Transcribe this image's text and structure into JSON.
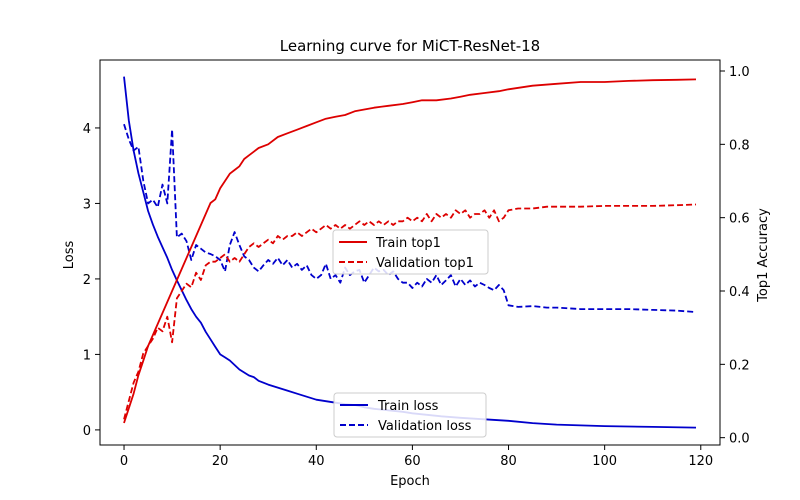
{
  "chart_data": {
    "type": "line",
    "title": "Learning curve for MiCT-ResNet-18",
    "xlabel": "Epoch",
    "ylabel_left": "Loss",
    "ylabel_right": "Top1 Accuracy",
    "xlim": [
      -5,
      124
    ],
    "ylim_left": [
      -0.2,
      4.9
    ],
    "ylim_right": [
      -0.02,
      1.03
    ],
    "x_ticks": [
      "0",
      "20",
      "40",
      "60",
      "80",
      "100",
      "120"
    ],
    "y_left_ticks": [
      "0",
      "1",
      "2",
      "3",
      "4"
    ],
    "y_right_ticks": [
      "0.0",
      "0.2",
      "0.4",
      "0.6",
      "0.8",
      "1.0"
    ],
    "grid": false,
    "legends": [
      {
        "placement": "center-right",
        "entries": [
          "Train top1",
          "Validation top1"
        ]
      },
      {
        "placement": "bottom-center",
        "entries": [
          "Train loss",
          "Validation loss"
        ]
      }
    ],
    "series": [
      {
        "name": "Train loss",
        "axis": "left",
        "color": "#0000cc",
        "style": "solid",
        "points": [
          [
            0,
            4.68
          ],
          [
            1,
            4.1
          ],
          [
            2,
            3.7
          ],
          [
            3,
            3.4
          ],
          [
            4,
            3.15
          ],
          [
            5,
            2.9
          ],
          [
            6,
            2.72
          ],
          [
            7,
            2.56
          ],
          [
            8,
            2.42
          ],
          [
            9,
            2.28
          ],
          [
            10,
            2.12
          ],
          [
            11,
            1.98
          ],
          [
            12,
            1.85
          ],
          [
            13,
            1.72
          ],
          [
            14,
            1.6
          ],
          [
            15,
            1.5
          ],
          [
            16,
            1.42
          ],
          [
            17,
            1.3
          ],
          [
            18,
            1.2
          ],
          [
            19,
            1.1
          ],
          [
            20,
            1.0
          ],
          [
            21,
            0.96
          ],
          [
            22,
            0.92
          ],
          [
            23,
            0.86
          ],
          [
            24,
            0.8
          ],
          [
            25,
            0.76
          ],
          [
            26,
            0.72
          ],
          [
            27,
            0.7
          ],
          [
            28,
            0.65
          ],
          [
            30,
            0.6
          ],
          [
            32,
            0.56
          ],
          [
            34,
            0.52
          ],
          [
            36,
            0.48
          ],
          [
            38,
            0.44
          ],
          [
            40,
            0.4
          ],
          [
            42,
            0.38
          ],
          [
            44,
            0.36
          ],
          [
            46,
            0.34
          ],
          [
            48,
            0.33
          ],
          [
            50,
            0.3
          ],
          [
            52,
            0.28
          ],
          [
            55,
            0.26
          ],
          [
            58,
            0.24
          ],
          [
            60,
            0.22
          ],
          [
            63,
            0.2
          ],
          [
            66,
            0.18
          ],
          [
            70,
            0.16
          ],
          [
            75,
            0.14
          ],
          [
            80,
            0.12
          ],
          [
            85,
            0.09
          ],
          [
            90,
            0.07
          ],
          [
            100,
            0.05
          ],
          [
            110,
            0.04
          ],
          [
            119,
            0.03
          ]
        ]
      },
      {
        "name": "Validation loss",
        "axis": "left",
        "color": "#0000cc",
        "style": "dashed",
        "points": [
          [
            0,
            4.05
          ],
          [
            1,
            3.85
          ],
          [
            2,
            3.7
          ],
          [
            3,
            3.75
          ],
          [
            4,
            3.3
          ],
          [
            5,
            3.0
          ],
          [
            6,
            3.05
          ],
          [
            7,
            2.95
          ],
          [
            8,
            3.25
          ],
          [
            9,
            3.0
          ],
          [
            10,
            3.98
          ],
          [
            11,
            2.55
          ],
          [
            12,
            2.6
          ],
          [
            13,
            2.5
          ],
          [
            14,
            2.25
          ],
          [
            15,
            2.45
          ],
          [
            16,
            2.4
          ],
          [
            17,
            2.35
          ],
          [
            18,
            2.33
          ],
          [
            19,
            2.3
          ],
          [
            20,
            2.25
          ],
          [
            21,
            2.1
          ],
          [
            22,
            2.45
          ],
          [
            23,
            2.62
          ],
          [
            24,
            2.45
          ],
          [
            25,
            2.3
          ],
          [
            26,
            2.25
          ],
          [
            27,
            2.15
          ],
          [
            28,
            2.1
          ],
          [
            29,
            2.18
          ],
          [
            30,
            2.25
          ],
          [
            31,
            2.2
          ],
          [
            32,
            2.28
          ],
          [
            33,
            2.18
          ],
          [
            34,
            2.25
          ],
          [
            35,
            2.15
          ],
          [
            36,
            2.2
          ],
          [
            37,
            2.12
          ],
          [
            38,
            2.18
          ],
          [
            39,
            2.05
          ],
          [
            40,
            2.0
          ],
          [
            41,
            2.05
          ],
          [
            42,
            2.2
          ],
          [
            43,
            2.0
          ],
          [
            44,
            2.05
          ],
          [
            45,
            1.95
          ],
          [
            46,
            2.15
          ],
          [
            47,
            2.05
          ],
          [
            48,
            2.1
          ],
          [
            49,
            2.12
          ],
          [
            50,
            1.95
          ],
          [
            51,
            2.05
          ],
          [
            52,
            2.15
          ],
          [
            53,
            2.1
          ],
          [
            54,
            2.12
          ],
          [
            55,
            2.05
          ],
          [
            56,
            2.1
          ],
          [
            57,
            2.0
          ],
          [
            58,
            1.95
          ],
          [
            59,
            1.95
          ],
          [
            60,
            1.88
          ],
          [
            61,
            1.95
          ],
          [
            62,
            1.9
          ],
          [
            63,
            2.0
          ],
          [
            64,
            1.95
          ],
          [
            65,
            2.05
          ],
          [
            66,
            1.92
          ],
          [
            67,
            1.98
          ],
          [
            68,
            2.05
          ],
          [
            69,
            1.9
          ],
          [
            70,
            2.0
          ],
          [
            71,
            1.92
          ],
          [
            72,
            1.98
          ],
          [
            73,
            1.9
          ],
          [
            74,
            1.95
          ],
          [
            75,
            1.92
          ],
          [
            76,
            1.88
          ],
          [
            77,
            1.85
          ],
          [
            78,
            1.92
          ],
          [
            79,
            1.85
          ],
          [
            80,
            1.65
          ],
          [
            82,
            1.63
          ],
          [
            85,
            1.64
          ],
          [
            88,
            1.62
          ],
          [
            90,
            1.62
          ],
          [
            95,
            1.6
          ],
          [
            100,
            1.6
          ],
          [
            105,
            1.6
          ],
          [
            110,
            1.59
          ],
          [
            115,
            1.58
          ],
          [
            119,
            1.56
          ]
        ]
      },
      {
        "name": "Train top1",
        "axis": "right",
        "color": "#dd0000",
        "style": "solid",
        "points": [
          [
            0,
            0.04
          ],
          [
            1,
            0.08
          ],
          [
            2,
            0.12
          ],
          [
            3,
            0.17
          ],
          [
            4,
            0.21
          ],
          [
            5,
            0.25
          ],
          [
            6,
            0.28
          ],
          [
            7,
            0.31
          ],
          [
            8,
            0.34
          ],
          [
            9,
            0.37
          ],
          [
            10,
            0.4
          ],
          [
            11,
            0.43
          ],
          [
            12,
            0.46
          ],
          [
            13,
            0.49
          ],
          [
            14,
            0.52
          ],
          [
            15,
            0.55
          ],
          [
            16,
            0.58
          ],
          [
            17,
            0.61
          ],
          [
            18,
            0.64
          ],
          [
            19,
            0.65
          ],
          [
            20,
            0.68
          ],
          [
            21,
            0.7
          ],
          [
            22,
            0.72
          ],
          [
            23,
            0.73
          ],
          [
            24,
            0.74
          ],
          [
            25,
            0.76
          ],
          [
            26,
            0.77
          ],
          [
            27,
            0.78
          ],
          [
            28,
            0.79
          ],
          [
            30,
            0.8
          ],
          [
            32,
            0.82
          ],
          [
            34,
            0.83
          ],
          [
            36,
            0.84
          ],
          [
            38,
            0.85
          ],
          [
            40,
            0.86
          ],
          [
            42,
            0.87
          ],
          [
            44,
            0.875
          ],
          [
            46,
            0.88
          ],
          [
            48,
            0.89
          ],
          [
            50,
            0.895
          ],
          [
            52,
            0.9
          ],
          [
            55,
            0.905
          ],
          [
            58,
            0.91
          ],
          [
            60,
            0.915
          ],
          [
            62,
            0.92
          ],
          [
            65,
            0.92
          ],
          [
            68,
            0.925
          ],
          [
            70,
            0.93
          ],
          [
            72,
            0.935
          ],
          [
            75,
            0.94
          ],
          [
            78,
            0.945
          ],
          [
            80,
            0.95
          ],
          [
            85,
            0.96
          ],
          [
            90,
            0.965
          ],
          [
            95,
            0.97
          ],
          [
            100,
            0.97
          ],
          [
            105,
            0.973
          ],
          [
            110,
            0.975
          ],
          [
            115,
            0.976
          ],
          [
            119,
            0.977
          ]
        ]
      },
      {
        "name": "Validation top1",
        "axis": "right",
        "color": "#dd0000",
        "style": "dashed",
        "points": [
          [
            0,
            0.05
          ],
          [
            1,
            0.1
          ],
          [
            2,
            0.15
          ],
          [
            3,
            0.18
          ],
          [
            4,
            0.23
          ],
          [
            5,
            0.25
          ],
          [
            6,
            0.27
          ],
          [
            7,
            0.3
          ],
          [
            8,
            0.29
          ],
          [
            9,
            0.33
          ],
          [
            10,
            0.26
          ],
          [
            11,
            0.38
          ],
          [
            12,
            0.4
          ],
          [
            13,
            0.42
          ],
          [
            14,
            0.41
          ],
          [
            15,
            0.45
          ],
          [
            16,
            0.43
          ],
          [
            17,
            0.47
          ],
          [
            18,
            0.48
          ],
          [
            19,
            0.48
          ],
          [
            20,
            0.49
          ],
          [
            21,
            0.5
          ],
          [
            22,
            0.48
          ],
          [
            23,
            0.49
          ],
          [
            24,
            0.48
          ],
          [
            25,
            0.5
          ],
          [
            26,
            0.52
          ],
          [
            27,
            0.53
          ],
          [
            28,
            0.52
          ],
          [
            29,
            0.53
          ],
          [
            30,
            0.54
          ],
          [
            31,
            0.53
          ],
          [
            32,
            0.55
          ],
          [
            33,
            0.54
          ],
          [
            34,
            0.55
          ],
          [
            35,
            0.55
          ],
          [
            36,
            0.56
          ],
          [
            37,
            0.55
          ],
          [
            38,
            0.56
          ],
          [
            39,
            0.57
          ],
          [
            40,
            0.56
          ],
          [
            41,
            0.57
          ],
          [
            42,
            0.58
          ],
          [
            43,
            0.57
          ],
          [
            44,
            0.58
          ],
          [
            45,
            0.57
          ],
          [
            46,
            0.58
          ],
          [
            47,
            0.57
          ],
          [
            48,
            0.58
          ],
          [
            49,
            0.59
          ],
          [
            50,
            0.58
          ],
          [
            51,
            0.59
          ],
          [
            52,
            0.58
          ],
          [
            53,
            0.59
          ],
          [
            54,
            0.58
          ],
          [
            55,
            0.59
          ],
          [
            56,
            0.58
          ],
          [
            57,
            0.59
          ],
          [
            58,
            0.59
          ],
          [
            59,
            0.6
          ],
          [
            60,
            0.59
          ],
          [
            61,
            0.6
          ],
          [
            62,
            0.59
          ],
          [
            63,
            0.61
          ],
          [
            64,
            0.59
          ],
          [
            65,
            0.61
          ],
          [
            66,
            0.6
          ],
          [
            67,
            0.61
          ],
          [
            68,
            0.6
          ],
          [
            69,
            0.62
          ],
          [
            70,
            0.61
          ],
          [
            71,
            0.62
          ],
          [
            72,
            0.6
          ],
          [
            73,
            0.61
          ],
          [
            74,
            0.61
          ],
          [
            75,
            0.62
          ],
          [
            76,
            0.6
          ],
          [
            77,
            0.62
          ],
          [
            78,
            0.59
          ],
          [
            79,
            0.6
          ],
          [
            80,
            0.62
          ],
          [
            82,
            0.625
          ],
          [
            85,
            0.625
          ],
          [
            88,
            0.63
          ],
          [
            90,
            0.63
          ],
          [
            95,
            0.63
          ],
          [
            100,
            0.632
          ],
          [
            105,
            0.632
          ],
          [
            110,
            0.632
          ],
          [
            115,
            0.634
          ],
          [
            119,
            0.636
          ]
        ]
      }
    ]
  }
}
